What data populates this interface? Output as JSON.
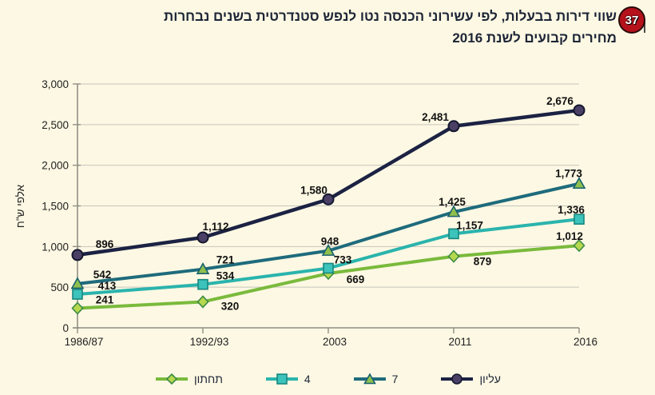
{
  "figure": {
    "badge": "37",
    "title_line1": "שווי דירות בבעלות, לפי עשירוני הכנסה נטו לנפש סטנדרטית בשנים נבחרות",
    "title_line2": "מחירים קבועים לשנת 2016"
  },
  "colors": {
    "background": "#fdf8e3",
    "title_text": "#1c2436",
    "grid": "#c6c6bd",
    "axis": "#8f8f85",
    "tick_label": "#1f1f1f",
    "data_label": "#111111",
    "badge_fill": "#b5121b",
    "badge_text": "#ffffff",
    "legend_text": "#1c2436"
  },
  "chart_data": {
    "type": "line",
    "title": "שווי דירות בבעלות, לפי עשירוני הכנסה נטו לנפש סטנדרטית בשנים נבחרות — מחירים קבועים לשנת 2016",
    "xlabel": "",
    "ylabel": "אלפי ש\"ח",
    "categories": [
      "1986/87",
      "1992/93",
      "2003",
      "2011",
      "2016"
    ],
    "y_ticks": [
      0,
      500,
      1000,
      1500,
      2000,
      2500,
      3000
    ],
    "ylim": [
      0,
      3000
    ],
    "grid": true,
    "legend_position": "bottom",
    "series": [
      {
        "id": "upper-decile",
        "name": "עליון",
        "values": [
          896,
          1112,
          1580,
          2481,
          2676
        ],
        "color": "#1b2243",
        "line_width": 4.5,
        "marker": "circle",
        "marker_fill": "#4a4066",
        "marker_stroke": "#14172e",
        "label_offsets": [
          [
            34,
            -9
          ],
          [
            16,
            -9
          ],
          [
            -18,
            -7
          ],
          [
            -23,
            -7
          ],
          [
            -24,
            -7
          ]
        ]
      },
      {
        "id": "decile-7",
        "name": "7",
        "values": [
          542,
          721,
          948,
          1425,
          1773
        ],
        "color": "#1e6b7c",
        "line_width": 4,
        "marker": "triangle",
        "marker_fill": "#8fbf4d",
        "marker_stroke": "#17606f",
        "label_offsets": [
          [
            31,
            -7
          ],
          [
            28,
            -7
          ],
          [
            2,
            -7
          ],
          [
            -2,
            -8
          ],
          [
            -13,
            -8
          ]
        ]
      },
      {
        "id": "decile-4",
        "name": "4",
        "values": [
          413,
          534,
          733,
          1157,
          1336
        ],
        "color": "#2ab4ad",
        "line_width": 4,
        "marker": "square",
        "marker_fill": "#3cc3bb",
        "marker_stroke": "#17877f",
        "label_offsets": [
          [
            37,
            -6
          ],
          [
            28,
            -6
          ],
          [
            18,
            -6
          ],
          [
            20,
            -6
          ],
          [
            -10,
            -7
          ]
        ]
      },
      {
        "id": "lower-decile",
        "name": "תחתון",
        "values": [
          241,
          320,
          669,
          879,
          1012
        ],
        "color": "#7aba3c",
        "line_width": 4,
        "marker": "diamond",
        "marker_fill": "#b6d84e",
        "marker_stroke": "#3c8a46",
        "label_offsets": [
          [
            34,
            -6
          ],
          [
            34,
            10
          ],
          [
            34,
            12
          ],
          [
            36,
            11
          ],
          [
            -12,
            -7
          ]
        ]
      }
    ]
  }
}
